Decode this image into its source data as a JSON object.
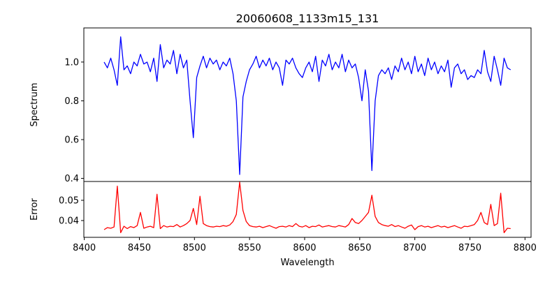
{
  "chart_data": [
    {
      "type": "line",
      "title": "20060608_1133m15_131",
      "xlabel": "",
      "ylabel": "Spectrum",
      "color": "#0000ff",
      "xlim": [
        8399.6,
        8805.5
      ],
      "ylim": [
        0.384,
        1.176
      ],
      "yticks": [
        0.4,
        0.6,
        0.8,
        1.0
      ],
      "ytick_labels": [
        "0.4",
        "0.6",
        "0.8",
        "1.0"
      ],
      "x_start": 8418,
      "x_step": 3,
      "values": [
        1.0,
        0.97,
        1.02,
        0.96,
        0.88,
        1.13,
        0.96,
        0.98,
        0.94,
        1.0,
        0.98,
        1.04,
        0.99,
        1.0,
        0.95,
        1.02,
        0.9,
        1.09,
        0.97,
        1.01,
        0.99,
        1.06,
        0.94,
        1.04,
        0.97,
        1.01,
        0.8,
        0.61,
        0.92,
        0.98,
        1.03,
        0.97,
        1.02,
        0.99,
        1.01,
        0.96,
        1.0,
        0.98,
        1.02,
        0.94,
        0.8,
        0.42,
        0.82,
        0.9,
        0.96,
        0.99,
        1.03,
        0.97,
        1.01,
        0.98,
        1.02,
        0.96,
        1.0,
        0.97,
        0.88,
        1.01,
        0.99,
        1.02,
        0.97,
        0.94,
        0.92,
        0.97,
        1.0,
        0.95,
        1.03,
        0.9,
        1.01,
        0.98,
        1.04,
        0.96,
        1.0,
        0.97,
        1.04,
        0.95,
        1.01,
        0.97,
        0.99,
        0.92,
        0.8,
        0.96,
        0.85,
        0.44,
        0.8,
        0.93,
        0.96,
        0.94,
        0.97,
        0.91,
        0.98,
        0.95,
        1.02,
        0.96,
        1.0,
        0.94,
        1.03,
        0.95,
        0.99,
        0.93,
        1.02,
        0.96,
        1.0,
        0.94,
        0.98,
        0.95,
        1.01,
        0.87,
        0.97,
        0.99,
        0.94,
        0.96,
        0.91,
        0.93,
        0.92,
        0.96,
        0.94,
        1.06,
        0.95,
        0.9,
        1.03,
        0.96,
        0.88,
        1.02,
        0.97,
        0.96
      ]
    },
    {
      "type": "line",
      "xlabel": "Wavelength",
      "ylabel": "Error",
      "color": "#ff0000",
      "xlim": [
        8399.6,
        8805.5
      ],
      "ylim": [
        0.0317,
        0.0593
      ],
      "yticks": [
        0.04,
        0.05
      ],
      "ytick_labels": [
        "0.04",
        "0.05"
      ],
      "xticks": [
        8400,
        8450,
        8500,
        8550,
        8600,
        8650,
        8700,
        8750,
        8800
      ],
      "xtick_labels": [
        "8400",
        "8450",
        "8500",
        "8550",
        "8600",
        "8650",
        "8700",
        "8750",
        "8800"
      ],
      "x_start": 8418,
      "x_step": 3,
      "values": [
        0.0355,
        0.0365,
        0.0362,
        0.0368,
        0.057,
        0.034,
        0.0372,
        0.036,
        0.037,
        0.0365,
        0.0375,
        0.044,
        0.0362,
        0.0368,
        0.0372,
        0.0365,
        0.053,
        0.036,
        0.0375,
        0.0368,
        0.0372,
        0.037,
        0.038,
        0.0368,
        0.0375,
        0.0385,
        0.04,
        0.046,
        0.038,
        0.052,
        0.0385,
        0.0375,
        0.037,
        0.0368,
        0.0372,
        0.037,
        0.0375,
        0.0372,
        0.0378,
        0.0395,
        0.043,
        0.059,
        0.045,
        0.0395,
        0.0375,
        0.037,
        0.0368,
        0.0372,
        0.0365,
        0.037,
        0.0375,
        0.0368,
        0.0362,
        0.037,
        0.0372,
        0.0368,
        0.0375,
        0.037,
        0.0385,
        0.0372,
        0.0368,
        0.0375,
        0.0365,
        0.0372,
        0.037,
        0.0378,
        0.0368,
        0.0372,
        0.0375,
        0.037,
        0.0368,
        0.0375,
        0.0372,
        0.0368,
        0.038,
        0.041,
        0.039,
        0.0385,
        0.04,
        0.042,
        0.044,
        0.0525,
        0.042,
        0.039,
        0.038,
        0.0375,
        0.0372,
        0.038,
        0.037,
        0.0375,
        0.0368,
        0.0362,
        0.0372,
        0.0378,
        0.0355,
        0.037,
        0.0375,
        0.0368,
        0.0372,
        0.0365,
        0.037,
        0.0375,
        0.0368,
        0.0372,
        0.0365,
        0.037,
        0.0375,
        0.0368,
        0.0362,
        0.0372,
        0.037,
        0.0375,
        0.038,
        0.04,
        0.044,
        0.039,
        0.038,
        0.048,
        0.0375,
        0.0385,
        0.0535,
        0.034,
        0.0362,
        0.036
      ]
    }
  ]
}
